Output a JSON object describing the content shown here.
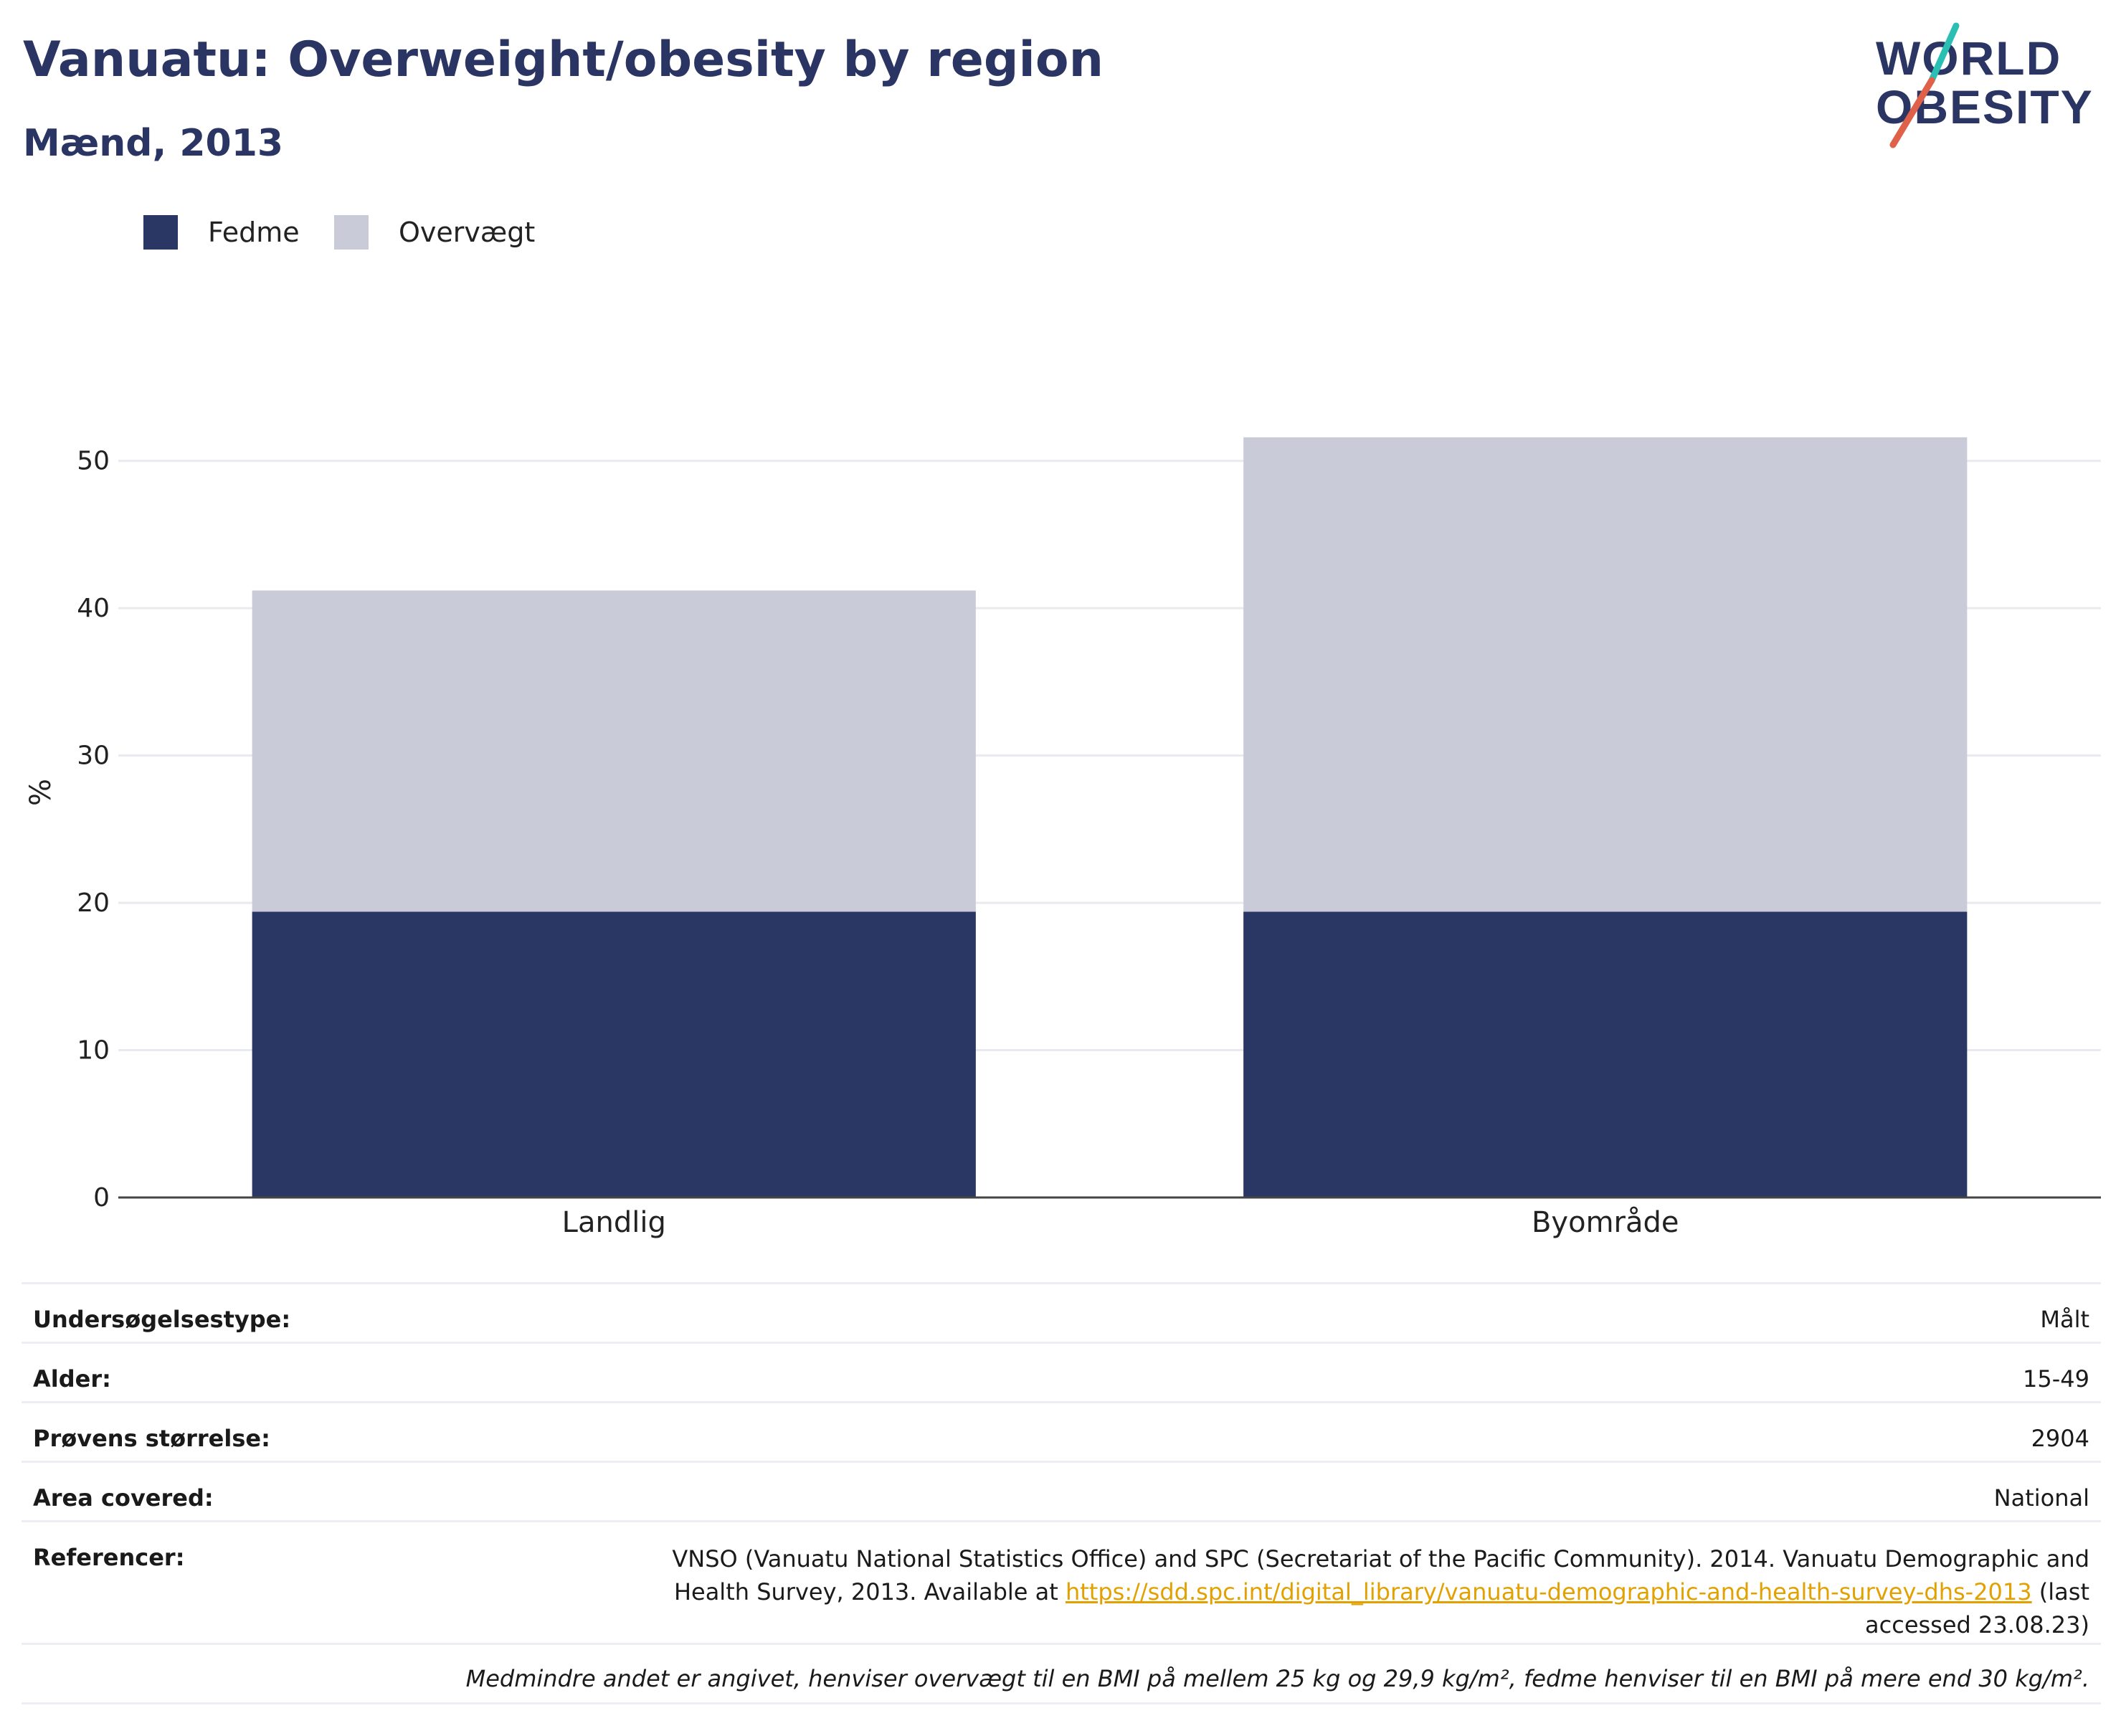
{
  "header": {
    "title": "Vanuatu: Overweight/obesity by region",
    "subtitle": "Mænd, 2013"
  },
  "logo": {
    "line1": "WORLD",
    "line2": "OBESITY",
    "accent_color": "#e0614a",
    "accent_color_2": "#2bbfb3",
    "text_color": "#2a3563"
  },
  "legend": {
    "items": [
      {
        "label": "Fedme",
        "color": "#2a3663"
      },
      {
        "label": "Overvægt",
        "color": "#c9ccd8"
      }
    ]
  },
  "chart_data": {
    "type": "bar",
    "stacked": true,
    "categories": [
      "Landlig",
      "Byområde"
    ],
    "series": [
      {
        "name": "Fedme",
        "color": "#2a3663",
        "values": [
          19.4,
          19.4
        ]
      },
      {
        "name": "Overvægt",
        "color": "#c9ccd8",
        "values": [
          21.8,
          32.2
        ]
      }
    ],
    "ylabel": "%",
    "ylim": [
      0,
      55
    ],
    "yticks": [
      0,
      10,
      20,
      30,
      40,
      50
    ],
    "grid": true,
    "legend_position": "top-left"
  },
  "meta": {
    "survey_type_label": "Undersøgelsestype:",
    "survey_type_value": "Målt",
    "age_label": "Alder:",
    "age_value": "15-49",
    "sample_label": "Prøvens størrelse:",
    "sample_value": "2904",
    "area_label": "Area covered:",
    "area_value": "National",
    "ref_label": "Referencer:",
    "ref_text_1": "VNSO (Vanuatu National Statistics Office) and SPC (Secretariat of the Pacific Community). 2014. Vanuatu Demographic and Health Survey, 2013. Available at ",
    "ref_link": "https://sdd.spc.int/digital_library/vanuatu-demographic-and-health-survey-dhs-2013",
    "ref_text_2": " (last accessed 23.08.23)",
    "footnote": "Medmindre andet er angivet, henviser overvægt til en BMI på mellem 25 kg og 29,9 kg/m², fedme henviser til en BMI på mere end 30 kg/m²."
  }
}
